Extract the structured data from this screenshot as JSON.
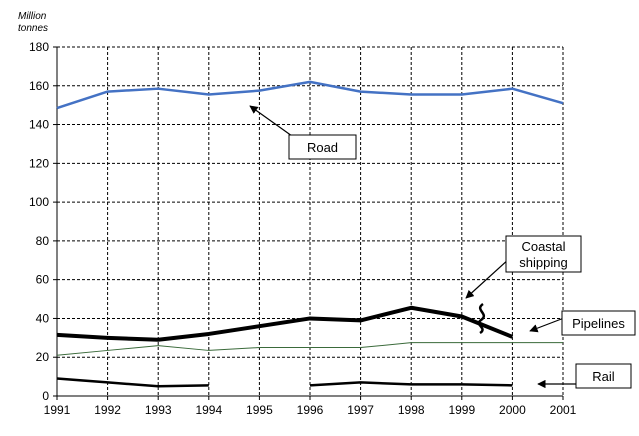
{
  "chart_data": {
    "type": "line",
    "ylabel": "Million tonnes",
    "xlabel": "",
    "ylim": [
      0,
      180
    ],
    "yticks": [
      0,
      20,
      40,
      60,
      80,
      100,
      120,
      140,
      160,
      180
    ],
    "x": [
      "1991",
      "1992",
      "1993",
      "1994",
      "1995",
      "1996",
      "1997",
      "1998",
      "1999",
      "2000",
      "2001"
    ],
    "grid": "dashed",
    "legend": "annotations",
    "series": [
      {
        "name": "Road",
        "color": "#4472C4",
        "weight": "normal",
        "values": [
          148.5,
          157,
          158.5,
          155.5,
          157.5,
          162,
          157,
          155.5,
          155.5,
          158.5,
          151
        ]
      },
      {
        "name": "Coastal shipping",
        "color": "#000000",
        "weight": "thick",
        "values": [
          31.5,
          30,
          29,
          32,
          36,
          40,
          39,
          45.5,
          41,
          30.5,
          null
        ]
      },
      {
        "name": "Pipelines",
        "color": "#3A6A3A",
        "weight": "thin",
        "values": [
          21,
          23.5,
          26,
          23.5,
          25,
          25,
          25,
          27.5,
          27.5,
          27.5,
          27.5
        ]
      },
      {
        "name": "Rail",
        "color": "#000000",
        "weight": "medium",
        "values": [
          9,
          7,
          5,
          5.5,
          null,
          5.5,
          7,
          6,
          6,
          5.5,
          null
        ]
      }
    ],
    "annotations": [
      {
        "id": "road",
        "label": "Road"
      },
      {
        "id": "coastal",
        "label": "Coastal\nshipping"
      },
      {
        "id": "pipelines",
        "label": "Pipelines"
      },
      {
        "id": "rail",
        "label": "Rail"
      }
    ]
  }
}
